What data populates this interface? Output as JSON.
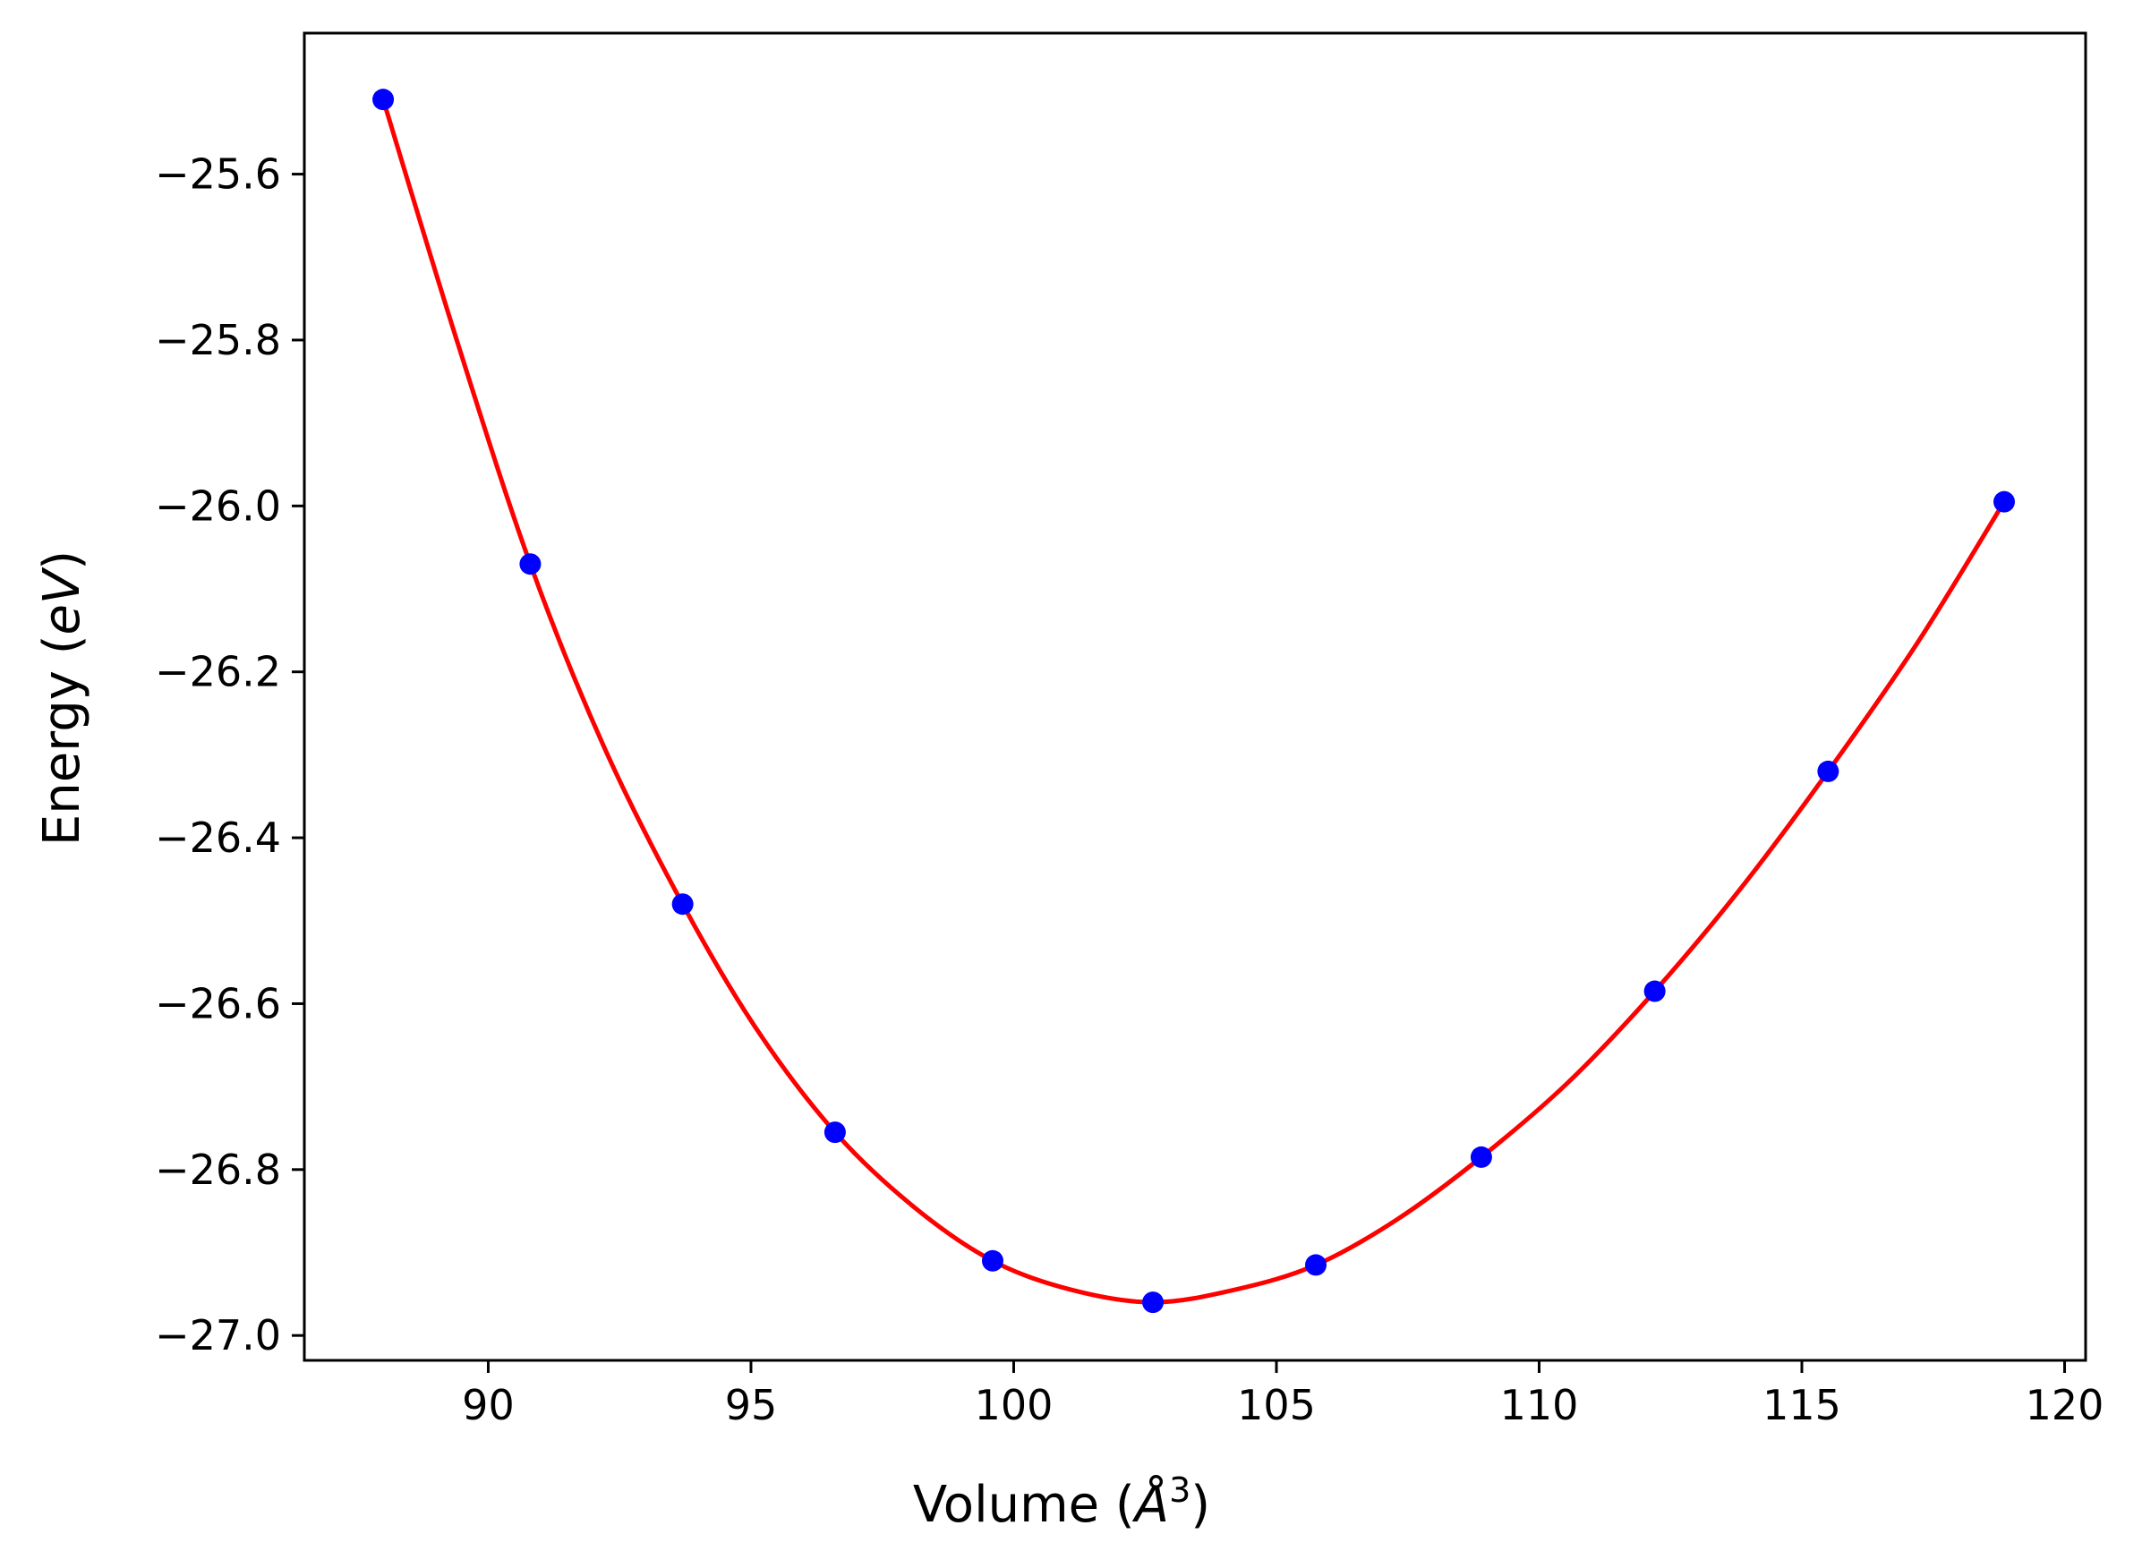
{
  "chart_data": {
    "type": "scatter",
    "xlabel_main": "Volume (",
    "xlabel_unit": "Å",
    "xlabel_exp": "3",
    "xlabel_close": ")",
    "ylabel_main": "Energy (",
    "ylabel_unit": "eV",
    "ylabel_close": ")",
    "xlim": [
      86.5,
      120.4
    ],
    "ylim": [
      -27.03,
      -25.43
    ],
    "xticks": [
      90,
      95,
      100,
      105,
      110,
      115,
      120
    ],
    "xtick_labels": [
      "90",
      "95",
      "100",
      "105",
      "110",
      "115",
      "120"
    ],
    "yticks": [
      -25.6,
      -25.8,
      -26.0,
      -26.2,
      -26.4,
      -26.6,
      -26.8,
      -27.0
    ],
    "ytick_labels": [
      "−25.6",
      "−25.8",
      "−26.0",
      "−26.2",
      "−26.4",
      "−26.6",
      "−26.8",
      "−27.0"
    ],
    "points": [
      [
        88.0,
        -25.51
      ],
      [
        90.8,
        -26.07
      ],
      [
        93.7,
        -26.48
      ],
      [
        96.6,
        -26.755
      ],
      [
        99.6,
        -26.91
      ],
      [
        102.65,
        -26.96
      ],
      [
        105.75,
        -26.915
      ],
      [
        108.9,
        -26.785
      ],
      [
        112.2,
        -26.585
      ],
      [
        115.5,
        -26.32
      ],
      [
        118.85,
        -25.995
      ]
    ],
    "fit_curve": [
      [
        88.0,
        -25.51
      ],
      [
        89.4,
        -25.8
      ],
      [
        90.8,
        -26.07
      ],
      [
        92.2,
        -26.29
      ],
      [
        93.7,
        -26.48
      ],
      [
        95.1,
        -26.63
      ],
      [
        96.6,
        -26.755
      ],
      [
        98.1,
        -26.845
      ],
      [
        99.6,
        -26.91
      ],
      [
        101.1,
        -26.945
      ],
      [
        102.65,
        -26.96
      ],
      [
        104.2,
        -26.945
      ],
      [
        105.75,
        -26.915
      ],
      [
        107.3,
        -26.86
      ],
      [
        108.9,
        -26.785
      ],
      [
        110.55,
        -26.695
      ],
      [
        112.2,
        -26.585
      ],
      [
        113.85,
        -26.46
      ],
      [
        115.5,
        -26.32
      ],
      [
        117.2,
        -26.165
      ],
      [
        118.85,
        -25.995
      ]
    ],
    "colors": {
      "points": "#0000ff",
      "fit": "#ff0000",
      "axes": "#000000"
    },
    "grid": false
  }
}
